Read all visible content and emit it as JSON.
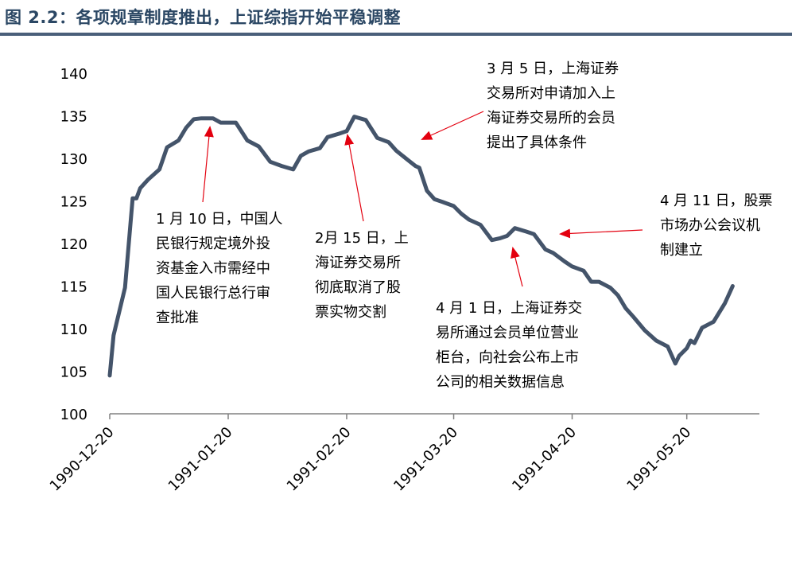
{
  "title": "图 2.2：各项规章制度推出，上证综指开始平稳调整",
  "colors": {
    "title": "#2b4764",
    "line": "#44546a",
    "arrow": "#e3000f",
    "axis": "#808080"
  },
  "chart_data": {
    "type": "line",
    "ylim": [
      100,
      140
    ],
    "yticks": [
      100,
      105,
      110,
      115,
      120,
      125,
      130,
      135,
      140
    ],
    "xlim": [
      "1990-12-20",
      "1991-06-08"
    ],
    "xticks": [
      "1990-12-20",
      "1991-01-20",
      "1991-02-20",
      "1991-03-20",
      "1991-04-20",
      "1991-05-20"
    ],
    "grid": false,
    "series": [
      {
        "x": [
          "1990-12-20",
          "1990-12-21",
          "1990-12-24",
          "1990-12-26",
          "1990-12-27",
          "1990-12-28",
          "1990-12-30",
          "1991-01-02",
          "1991-01-04",
          "1991-01-07",
          "1991-01-09",
          "1991-01-11",
          "1991-01-13",
          "1991-01-16",
          "1991-01-18",
          "1991-01-20",
          "1991-01-22",
          "1991-01-25",
          "1991-01-28",
          "1991-01-31",
          "1991-02-03",
          "1991-02-06",
          "1991-02-08",
          "1991-02-10",
          "1991-02-13",
          "1991-02-15",
          "1991-02-18",
          "1991-02-20",
          "1991-02-22",
          "1991-02-25",
          "1991-02-28",
          "1991-03-03",
          "1991-03-05",
          "1991-03-08",
          "1991-03-10",
          "1991-03-11",
          "1991-03-13",
          "1991-03-15",
          "1991-03-17",
          "1991-03-20",
          "1991-03-22",
          "1991-03-24",
          "1991-03-27",
          "1991-03-30",
          "1991-04-01",
          "1991-04-03",
          "1991-04-05",
          "1991-04-08",
          "1991-04-10",
          "1991-04-13",
          "1991-04-15",
          "1991-04-18",
          "1991-04-20",
          "1991-04-23",
          "1991-04-25",
          "1991-04-27",
          "1991-04-30",
          "1991-05-02",
          "1991-05-04",
          "1991-05-06",
          "1991-05-09",
          "1991-05-12",
          "1991-05-15",
          "1991-05-17",
          "1991-05-18",
          "1991-05-20",
          "1991-05-21",
          "1991-05-22",
          "1991-05-24",
          "1991-05-27",
          "1991-05-30",
          "1991-06-01"
        ],
        "values": [
          104.5,
          109.2,
          114.8,
          125.3,
          125.3,
          126.5,
          127.5,
          128.7,
          131.3,
          132.1,
          133.6,
          134.6,
          134.7,
          134.7,
          134.2,
          134.2,
          134.2,
          132.1,
          131.4,
          129.6,
          129.1,
          128.7,
          130.3,
          130.8,
          131.2,
          132.5,
          132.9,
          133.2,
          134.9,
          134.5,
          132.4,
          131.9,
          130.9,
          129.8,
          129.1,
          128.9,
          126.2,
          125.2,
          124.9,
          124.4,
          123.5,
          122.8,
          122.2,
          120.4,
          120.6,
          120.9,
          121.8,
          121.4,
          121.1,
          119.3,
          118.9,
          117.9,
          117.3,
          116.8,
          115.5,
          115.5,
          114.8,
          113.9,
          112.4,
          111.4,
          109.8,
          108.6,
          107.9,
          105.9,
          106.8,
          107.7,
          108.6,
          108.3,
          110.1,
          110.8,
          113.0,
          115.0
        ]
      }
    ],
    "annotations": [
      {
        "lines": [
          "1 月 10 日，中国人",
          "民银行规定境外投",
          "资基金入市需经中",
          "国人民银行总行审",
          "查批准"
        ]
      },
      {
        "lines": [
          "2月 15 日，上",
          "海证券交易所",
          "彻底取消了股",
          "票实物交割"
        ]
      },
      {
        "lines": [
          "3 月 5 日，上海证券",
          "交易所对申请加入上",
          "海证券交易所的会员",
          "提出了具体条件"
        ]
      },
      {
        "lines": [
          "4 月 1 日，上海证券交",
          "易所通过会员单位营业",
          "柜台，向社会公布上市",
          "公司的相关数据信息"
        ]
      },
      {
        "lines": [
          "4 月 11 日，股票",
          "市场办公会议机",
          "制建立"
        ]
      }
    ]
  }
}
